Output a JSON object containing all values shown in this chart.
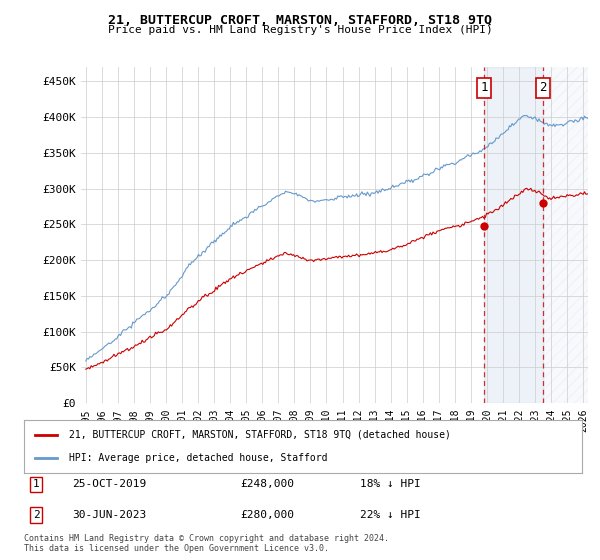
{
  "title": "21, BUTTERCUP CROFT, MARSTON, STAFFORD, ST18 9TQ",
  "subtitle": "Price paid vs. HM Land Registry's House Price Index (HPI)",
  "ylim": [
    0,
    470000
  ],
  "yticks": [
    0,
    50000,
    100000,
    150000,
    200000,
    250000,
    300000,
    350000,
    400000,
    450000
  ],
  "ylabel_labels": [
    "£0",
    "£50K",
    "£100K",
    "£150K",
    "£200K",
    "£250K",
    "£300K",
    "£350K",
    "£400K",
    "£450K"
  ],
  "hpi_color": "#6699cc",
  "price_color": "#cc0000",
  "annotation1_date": "25-OCT-2019",
  "annotation1_price": "£248,000",
  "annotation1_hpi": "18% ↓ HPI",
  "annotation2_date": "30-JUN-2023",
  "annotation2_price": "£280,000",
  "annotation2_hpi": "22% ↓ HPI",
  "legend_label1": "21, BUTTERCUP CROFT, MARSTON, STAFFORD, ST18 9TQ (detached house)",
  "legend_label2": "HPI: Average price, detached house, Stafford",
  "footnote": "Contains HM Land Registry data © Crown copyright and database right 2024.\nThis data is licensed under the Open Government Licence v3.0.",
  "transaction1_x": 2019.82,
  "transaction2_x": 2023.5,
  "transaction1_y": 248000,
  "transaction2_y": 280000,
  "background_color": "#ffffff",
  "grid_color": "#cccccc",
  "xmin": 1994.7,
  "xmax": 2026.3
}
